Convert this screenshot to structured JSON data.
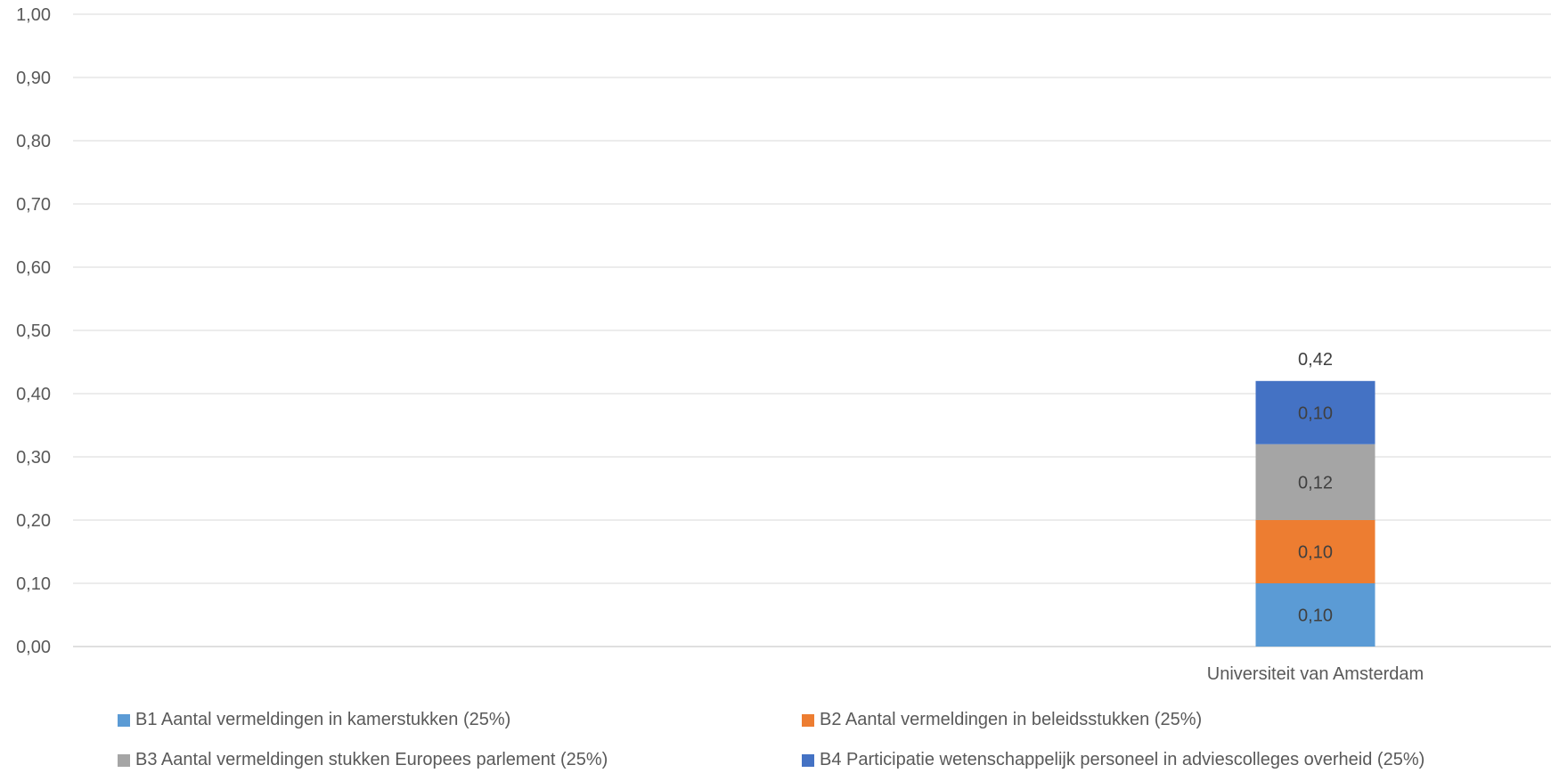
{
  "chart_data": {
    "type": "bar",
    "stacked": true,
    "categories": [
      "Universiteit van Amsterdam"
    ],
    "series": [
      {
        "name": "B1 Aantal vermeldingen in kamerstukken (25%)",
        "values": [
          0.1
        ],
        "labels": [
          "0,10"
        ],
        "color": "#5B9BD5"
      },
      {
        "name": "B2 Aantal vermeldingen in beleidsstukken (25%)",
        "values": [
          0.1
        ],
        "labels": [
          "0,10"
        ],
        "color": "#ED7D31"
      },
      {
        "name": "B3 Aantal vermeldingen stukken Europees parlement (25%)",
        "values": [
          0.12
        ],
        "labels": [
          "0,12"
        ],
        "color": "#A5A5A5"
      },
      {
        "name": "B4 Participatie wetenschappelijk personeel in adviescolleges overheid (25%)",
        "values": [
          0.1
        ],
        "labels": [
          "0,10"
        ],
        "color": "#4472C4"
      }
    ],
    "totals": [
      0.42
    ],
    "total_labels": [
      "0,42"
    ],
    "ylim": [
      0,
      1
    ],
    "yticks": [
      "0,00",
      "0,10",
      "0,20",
      "0,30",
      "0,40",
      "0,50",
      "0,60",
      "0,70",
      "0,80",
      "0,90",
      "1,00"
    ],
    "grid": true,
    "legend_position": "bottom"
  }
}
